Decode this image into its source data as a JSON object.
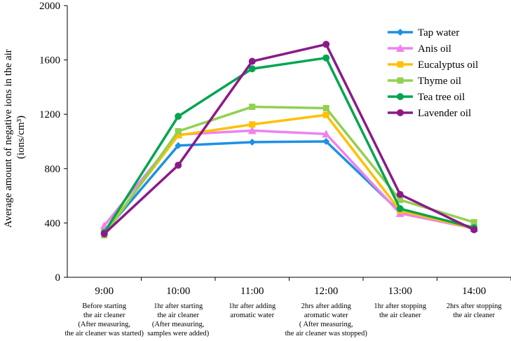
{
  "chart_data": {
    "type": "line",
    "title": "",
    "ylabel_line1": "Average amount of negative ions in the air",
    "ylabel_line2": "(ions/cm³)",
    "xlabel": "",
    "ylim": [
      0,
      2000
    ],
    "yticks": [
      0,
      400,
      800,
      1200,
      1600,
      2000
    ],
    "grid": false,
    "legend_position": "top-right",
    "categories": [
      "9:00",
      "10:00",
      "11:00",
      "12:00",
      "13:00",
      "14:00"
    ],
    "category_notes": [
      [
        "Before starting",
        "the air cleaner",
        "(After  measuring,",
        "the air cleaner was started)"
      ],
      [
        "1hr after starting",
        "the air cleaner",
        "(After measuring,",
        "samples were added)"
      ],
      [
        "1hr after adding",
        "aromatic water"
      ],
      [
        "2hrs after adding",
        "aromatic water",
        "( After measuring,",
        "the air cleaner was stopped)"
      ],
      [
        "1hr after stopping",
        "the air cleaner"
      ],
      [
        "2hrs after stopping",
        "the air cleaner"
      ]
    ],
    "series": [
      {
        "name": "Tap water",
        "color": "#1E90E6",
        "marker": "diamond",
        "values": [
          330,
          970,
          995,
          1000,
          480,
          360
        ]
      },
      {
        "name": "Anis oil",
        "color": "#EE82EE",
        "marker": "triangle",
        "values": [
          380,
          1050,
          1080,
          1055,
          470,
          360
        ]
      },
      {
        "name": "Eucalyptus oil",
        "color": "#FFC000",
        "marker": "square",
        "values": [
          330,
          1045,
          1125,
          1195,
          490,
          360
        ]
      },
      {
        "name": "Thyme oil",
        "color": "#92D050",
        "marker": "square",
        "values": [
          310,
          1075,
          1255,
          1245,
          570,
          405
        ]
      },
      {
        "name": "Tea tree oil",
        "color": "#00A550",
        "marker": "circle",
        "values": [
          330,
          1185,
          1535,
          1615,
          505,
          365
        ]
      },
      {
        "name": "Lavender oil",
        "color": "#8B1A89",
        "marker": "circle",
        "values": [
          320,
          825,
          1590,
          1715,
          610,
          350
        ]
      }
    ]
  }
}
